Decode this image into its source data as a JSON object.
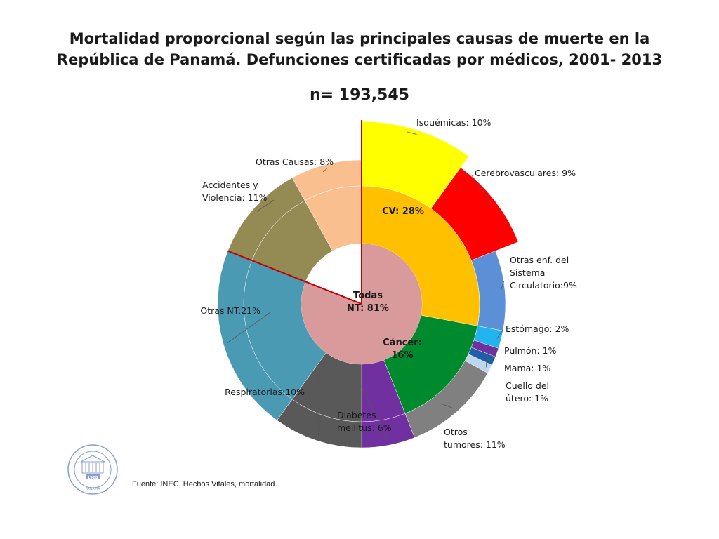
{
  "header": {
    "title_line1": "Mortalidad proporcional según las principales causas de muerte en la",
    "title_line2": "República de Panamá. Defunciones certificadas por médicos, 2001- 2013",
    "n_label": "n= 193,545"
  },
  "footer": {
    "source": "Fuente: INEC, Hechos Vitales, mortalidad."
  },
  "logo": {
    "year": "1928",
    "name": "PANAMA",
    "ring_text": "INSTITUTO CONMEMORATIVO GORGAS DE ESTUDIOS DE LA SALUD"
  },
  "chart_data": {
    "type": "pie",
    "subtype": "nested-donut",
    "total_n": 193545,
    "inner": {
      "label_line1": "Todas",
      "label_line2": "NT: 81%",
      "value": 81,
      "color": "#d89a9a"
    },
    "middle": [
      {
        "name": "CV: 28%",
        "value": 28,
        "color": "#ffc000"
      },
      {
        "name": "Cáncer:",
        "name2": "16%",
        "value": 16,
        "color": "#008a2e"
      }
    ],
    "outer": [
      {
        "name": "Isquémicas: 10%",
        "value": 10,
        "color": "#ffff00"
      },
      {
        "name": "Cerebrovasculares: 9%",
        "value": 9,
        "color": "#ff0000"
      },
      {
        "name": "Otras enf. del",
        "name2": "Sistema",
        "name3": "Circulatorio:9%",
        "value": 9,
        "color": "#5b8fd6"
      },
      {
        "name": "Estómago: 2%",
        "value": 2,
        "color": "#22b4ee"
      },
      {
        "name": "Pulmón: 1%",
        "value": 1,
        "color": "#7030a0"
      },
      {
        "name": "Mama: 1%",
        "value": 1,
        "color": "#1f5fa8"
      },
      {
        "name": "Cuello del",
        "name2": "útero: 1%",
        "value": 1,
        "color": "#bdd7ee"
      },
      {
        "name": "Otros",
        "name2": "tumores: 11%",
        "value": 11,
        "color": "#808080"
      },
      {
        "name": "Diabetes",
        "name2": "mellitus: 6%",
        "value": 6,
        "color": "#7030a0"
      },
      {
        "name": "Respiratorias:10%",
        "value": 10,
        "color": "#595959"
      },
      {
        "name": "Otras NT:21%",
        "value": 21,
        "color": "#4a9ab3"
      },
      {
        "name": "Accidentes y",
        "name2": "Violencia: 11%",
        "value": 11,
        "color": "#948a54"
      },
      {
        "name": "Otras Causas: 8%",
        "value": 8,
        "color": "#fabf8f"
      }
    ]
  }
}
